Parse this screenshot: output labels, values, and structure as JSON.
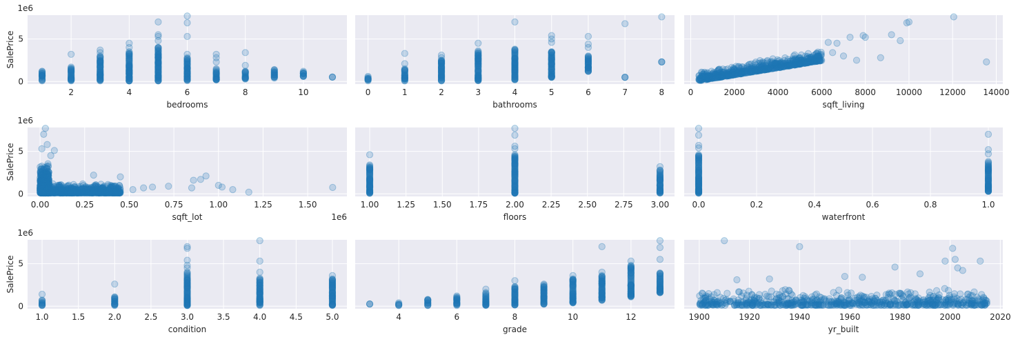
{
  "chart_data": {
    "type": "scatter",
    "layout": {
      "rows": 3,
      "cols": 3
    },
    "ylabel": "SalePrice",
    "y_offset_text": "1e6",
    "grid": true,
    "point_color": "#1f77b4",
    "background_color": "#eaeaf2",
    "panels": [
      {
        "xlabel": "bedrooms",
        "xlim": [
          0.5,
          11.5
        ],
        "ylim": [
          -0.3,
          7.8
        ],
        "xticks": [
          2,
          4,
          6,
          8,
          10
        ],
        "xtick_labels": [
          "2",
          "4",
          "6",
          "8",
          "10"
        ],
        "yticks": [
          0,
          5
        ],
        "ytick_labels": [
          "0",
          "5"
        ],
        "show_ylabel": true,
        "x_offset_text": "",
        "columns": [
          {
            "x": 1,
            "ymin": 0.08,
            "ymax": 1.2,
            "extra": []
          },
          {
            "x": 2,
            "ymin": 0.08,
            "ymax": 1.7,
            "extra": [
              3.2
            ]
          },
          {
            "x": 3,
            "ymin": 0.08,
            "ymax": 3.0,
            "extra": [
              3.4,
              3.7
            ]
          },
          {
            "x": 4,
            "ymin": 0.08,
            "ymax": 3.5,
            "extra": [
              4.0,
              4.5
            ]
          },
          {
            "x": 5,
            "ymin": 0.08,
            "ymax": 4.0,
            "extra": [
              4.8,
              5.3,
              5.5,
              7.0
            ]
          },
          {
            "x": 6,
            "ymin": 0.1,
            "ymax": 2.8,
            "extra": [
              3.2,
              5.3,
              6.9,
              7.7
            ]
          },
          {
            "x": 7,
            "ymin": 0.2,
            "ymax": 1.5,
            "extra": [
              2.3,
              2.8,
              3.2
            ]
          },
          {
            "x": 8,
            "ymin": 0.3,
            "ymax": 1.2,
            "extra": [
              1.9,
              3.4
            ]
          },
          {
            "x": 9,
            "ymin": 0.4,
            "ymax": 1.4,
            "extra": []
          },
          {
            "x": 10,
            "ymin": 0.6,
            "ymax": 1.2,
            "extra": []
          },
          {
            "x": 11,
            "ymin": 0.52,
            "ymax": 0.52,
            "extra": []
          }
        ]
      },
      {
        "xlabel": "bathrooms",
        "xlim": [
          -0.35,
          8.35
        ],
        "ylim": [
          -0.3,
          7.8
        ],
        "xticks": [
          0,
          1,
          2,
          3,
          4,
          5,
          6,
          7,
          8
        ],
        "xtick_labels": [
          "0",
          "1",
          "2",
          "3",
          "4",
          "5",
          "6",
          "7",
          "8"
        ],
        "yticks": [
          0,
          5
        ],
        "ytick_labels": [
          "",
          ""
        ],
        "show_ylabel": false,
        "x_offset_text": "",
        "columns": [
          {
            "x": 0,
            "ymin": 0.08,
            "ymax": 0.6,
            "extra": []
          },
          {
            "x": 1,
            "ymin": 0.08,
            "ymax": 1.5,
            "extra": [
              2.1,
              3.3
            ]
          },
          {
            "x": 2,
            "ymin": 0.08,
            "ymax": 2.5,
            "extra": [
              2.8,
              3.1
            ]
          },
          {
            "x": 3,
            "ymin": 0.1,
            "ymax": 3.6,
            "extra": [
              4.5
            ]
          },
          {
            "x": 4,
            "ymin": 0.2,
            "ymax": 3.8,
            "extra": [
              7.0
            ]
          },
          {
            "x": 5,
            "ymin": 0.5,
            "ymax": 3.5,
            "extra": [
              4.6,
              5.0,
              5.4
            ]
          },
          {
            "x": 6,
            "ymin": 1.2,
            "ymax": 3.0,
            "extra": [
              4.0,
              4.4,
              5.3
            ]
          },
          {
            "x": 7,
            "ymin": 0.5,
            "ymax": 0.5,
            "extra": [
              6.8
            ]
          },
          {
            "x": 8,
            "ymin": 2.3,
            "ymax": 2.3,
            "extra": [
              7.6
            ]
          }
        ]
      },
      {
        "xlabel": "sqft_living",
        "xlim": [
          -300,
          14300
        ],
        "ylim": [
          -0.3,
          7.8
        ],
        "xticks": [
          0,
          2000,
          4000,
          6000,
          8000,
          10000,
          12000,
          14000
        ],
        "xtick_labels": [
          "0",
          "2000",
          "4000",
          "6000",
          "8000",
          "10000",
          "12000",
          "14000"
        ],
        "yticks": [
          0,
          5
        ],
        "ytick_labels": [
          "",
          ""
        ],
        "show_ylabel": false,
        "x_offset_text": "",
        "bands": [
          {
            "x0": 370,
            "x1": 6000,
            "slope": 0.00042,
            "spread": 1.3
          }
        ],
        "points": [
          [
            6300,
            4.6
          ],
          [
            6500,
            3.4
          ],
          [
            6700,
            4.5
          ],
          [
            7000,
            3.0
          ],
          [
            7300,
            5.2
          ],
          [
            7600,
            2.5
          ],
          [
            7900,
            5.4
          ],
          [
            8000,
            5.2
          ],
          [
            8700,
            2.8
          ],
          [
            9200,
            5.5
          ],
          [
            9600,
            4.8
          ],
          [
            9900,
            6.9
          ],
          [
            10000,
            7.0
          ],
          [
            12050,
            7.6
          ],
          [
            13550,
            2.3
          ]
        ]
      },
      {
        "xlabel": "sqft_lot",
        "xlim": [
          -0.07,
          1.72
        ],
        "ylim": [
          -0.3,
          7.8
        ],
        "xticks": [
          0,
          0.25,
          0.5,
          0.75,
          1.0,
          1.25,
          1.5
        ],
        "xtick_labels": [
          "0.00",
          "0.25",
          "0.50",
          "0.75",
          "1.00",
          "1.25",
          "1.50"
        ],
        "yticks": [
          0,
          5
        ],
        "ytick_labels": [
          "0",
          "5"
        ],
        "show_ylabel": true,
        "x_offset_text": "1e6",
        "bands": [
          {
            "x0": 0.0,
            "x1": 0.05,
            "slope": 0,
            "spread": 3.6
          },
          {
            "x0": 0.05,
            "x1": 0.45,
            "slope": 0,
            "spread": 1.2
          }
        ],
        "points": [
          [
            0.01,
            5.3
          ],
          [
            0.02,
            7.0
          ],
          [
            0.03,
            7.7
          ],
          [
            0.04,
            5.8
          ],
          [
            0.06,
            4.5
          ],
          [
            0.08,
            5.1
          ],
          [
            0.3,
            2.2
          ],
          [
            0.45,
            2.0
          ],
          [
            0.52,
            0.5
          ],
          [
            0.58,
            0.7
          ],
          [
            0.63,
            0.8
          ],
          [
            0.72,
            0.9
          ],
          [
            0.85,
            0.7
          ],
          [
            0.86,
            1.6
          ],
          [
            0.9,
            1.7
          ],
          [
            0.93,
            2.1
          ],
          [
            1.0,
            1.0
          ],
          [
            1.02,
            0.8
          ],
          [
            1.08,
            0.5
          ],
          [
            1.17,
            0.2
          ],
          [
            1.64,
            0.75
          ]
        ]
      },
      {
        "xlabel": "floors",
        "xlim": [
          0.9,
          3.1
        ],
        "ylim": [
          -0.3,
          7.8
        ],
        "xticks": [
          1.0,
          1.25,
          1.5,
          1.75,
          2.0,
          2.25,
          2.5,
          2.75,
          3.0
        ],
        "xtick_labels": [
          "1.00",
          "1.25",
          "1.50",
          "1.75",
          "2.00",
          "2.25",
          "2.50",
          "2.75",
          "3.00"
        ],
        "yticks": [
          0,
          5
        ],
        "ytick_labels": [
          "",
          ""
        ],
        "show_ylabel": false,
        "x_offset_text": "",
        "columns": [
          {
            "x": 1.0,
            "ymin": 0.08,
            "ymax": 3.4,
            "extra": [
              4.6
            ]
          },
          {
            "x": 2.0,
            "ymin": 0.08,
            "ymax": 4.6,
            "extra": [
              5.3,
              5.6,
              6.9,
              7.7
            ]
          },
          {
            "x": 3.0,
            "ymin": 0.1,
            "ymax": 2.8,
            "extra": [
              3.2
            ]
          }
        ]
      },
      {
        "xlabel": "waterfront",
        "xlim": [
          -0.05,
          1.05
        ],
        "ylim": [
          -0.3,
          7.8
        ],
        "xticks": [
          0.0,
          0.2,
          0.4,
          0.6,
          0.8,
          1.0
        ],
        "xtick_labels": [
          "0.0",
          "0.2",
          "0.4",
          "0.6",
          "0.8",
          "1.0"
        ],
        "yticks": [
          0,
          5
        ],
        "ytick_labels": [
          "",
          ""
        ],
        "show_ylabel": false,
        "x_offset_text": "",
        "columns": [
          {
            "x": 0.0,
            "ymin": 0.08,
            "ymax": 4.6,
            "extra": [
              5.4,
              5.7,
              6.9,
              7.7
            ]
          },
          {
            "x": 1.0,
            "ymin": 0.3,
            "ymax": 3.8,
            "extra": [
              4.7,
              5.2,
              7.0
            ]
          }
        ]
      },
      {
        "xlabel": "condition",
        "xlim": [
          0.8,
          5.2
        ],
        "ylim": [
          -0.3,
          7.8
        ],
        "xticks": [
          1.0,
          1.5,
          2.0,
          2.5,
          3.0,
          3.5,
          4.0,
          4.5,
          5.0
        ],
        "xtick_labels": [
          "1.0",
          "1.5",
          "2.0",
          "2.5",
          "3.0",
          "3.5",
          "4.0",
          "4.5",
          "5.0"
        ],
        "yticks": [
          0,
          5
        ],
        "ytick_labels": [
          "0",
          "5"
        ],
        "show_ylabel": true,
        "x_offset_text": "",
        "columns": [
          {
            "x": 1.0,
            "ymin": 0.08,
            "ymax": 0.7,
            "extra": [
              1.4
            ]
          },
          {
            "x": 2.0,
            "ymin": 0.08,
            "ymax": 1.1,
            "extra": [
              2.6
            ]
          },
          {
            "x": 3.0,
            "ymin": 0.08,
            "ymax": 4.0,
            "extra": [
              4.5,
              4.8,
              5.4,
              6.8,
              7.0
            ]
          },
          {
            "x": 4.0,
            "ymin": 0.08,
            "ymax": 3.3,
            "extra": [
              4.0,
              5.3,
              7.7
            ]
          },
          {
            "x": 5.0,
            "ymin": 0.1,
            "ymax": 3.2,
            "extra": [
              3.6
            ]
          }
        ]
      },
      {
        "xlabel": "grade",
        "xlim": [
          2.5,
          13.5
        ],
        "ylim": [
          -0.3,
          7.8
        ],
        "xticks": [
          4,
          6,
          8,
          10,
          12
        ],
        "xtick_labels": [
          "4",
          "6",
          "8",
          "10",
          "12"
        ],
        "yticks": [
          0,
          5
        ],
        "ytick_labels": [
          "",
          ""
        ],
        "show_ylabel": false,
        "x_offset_text": "",
        "columns": [
          {
            "x": 3,
            "ymin": 0.26,
            "ymax": 0.26,
            "extra": []
          },
          {
            "x": 4,
            "ymin": 0.08,
            "ymax": 0.4,
            "extra": []
          },
          {
            "x": 5,
            "ymin": 0.08,
            "ymax": 0.8,
            "extra": []
          },
          {
            "x": 6,
            "ymin": 0.08,
            "ymax": 1.2,
            "extra": []
          },
          {
            "x": 7,
            "ymin": 0.1,
            "ymax": 1.6,
            "extra": [
              2.0
            ]
          },
          {
            "x": 8,
            "ymin": 0.15,
            "ymax": 2.3,
            "extra": [
              3.0
            ]
          },
          {
            "x": 9,
            "ymin": 0.25,
            "ymax": 2.6,
            "extra": []
          },
          {
            "x": 10,
            "ymin": 0.4,
            "ymax": 3.2,
            "extra": [
              3.6
            ]
          },
          {
            "x": 11,
            "ymin": 0.7,
            "ymax": 3.6,
            "extra": [
              4.0,
              7.0
            ]
          },
          {
            "x": 12,
            "ymin": 1.1,
            "ymax": 4.8,
            "extra": [
              5.3
            ]
          },
          {
            "x": 13,
            "ymin": 1.6,
            "ymax": 3.9,
            "extra": [
              5.5,
              6.9,
              7.7
            ]
          }
        ]
      },
      {
        "xlabel": "yr_built",
        "xlim": [
          1894,
          2021
        ],
        "ylim": [
          -0.3,
          7.8
        ],
        "xticks": [
          1900,
          1920,
          1940,
          1960,
          1980,
          2000,
          2020
        ],
        "xtick_labels": [
          "1900",
          "1920",
          "1940",
          "1960",
          "1980",
          "2000",
          "2020"
        ],
        "yticks": [
          0,
          5
        ],
        "ytick_labels": [
          "",
          ""
        ],
        "show_ylabel": false,
        "x_offset_text": "",
        "bands": [
          {
            "x0": 1900,
            "x1": 2015,
            "slope": 0,
            "spread": 2.0
          }
        ],
        "points": [
          [
            1910,
            7.7
          ],
          [
            1940,
            7.0
          ],
          [
            1998,
            5.3
          ],
          [
            2001,
            6.8
          ],
          [
            2002,
            5.5
          ],
          [
            2003,
            4.5
          ],
          [
            2012,
            5.3
          ],
          [
            1978,
            4.6
          ],
          [
            1958,
            3.5
          ],
          [
            1988,
            3.8
          ],
          [
            1965,
            3.4
          ],
          [
            1928,
            3.2
          ],
          [
            1915,
            3.1
          ],
          [
            2005,
            4.2
          ]
        ]
      }
    ]
  }
}
